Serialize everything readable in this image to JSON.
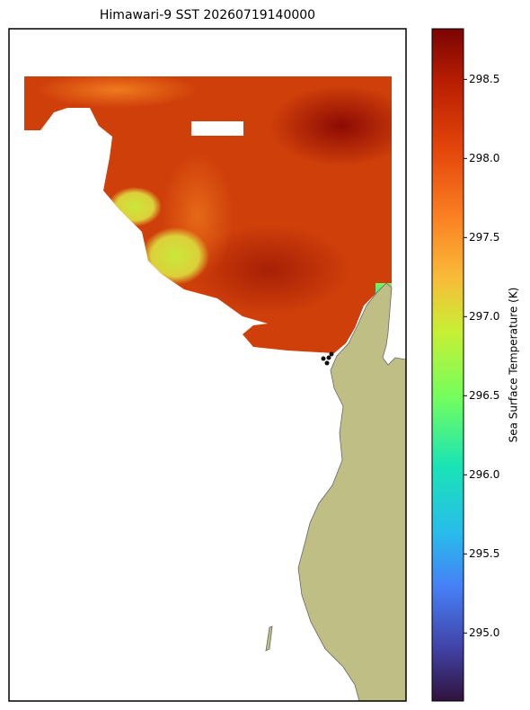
{
  "title": "Himawari-9 SST 20260719140000",
  "colorbar": {
    "label": "Sea Surface Temperature (K)",
    "lim": [
      294.57,
      298.82
    ],
    "ticks": [
      {
        "value": 295,
        "label": "295.0"
      },
      295.5,
      {
        "value": 296,
        "label": "296.0"
      },
      296.5,
      {
        "value": 297,
        "label": "297.0"
      },
      297.5,
      {
        "value": 298,
        "label": "298.0"
      },
      298.5
    ]
  }
}
